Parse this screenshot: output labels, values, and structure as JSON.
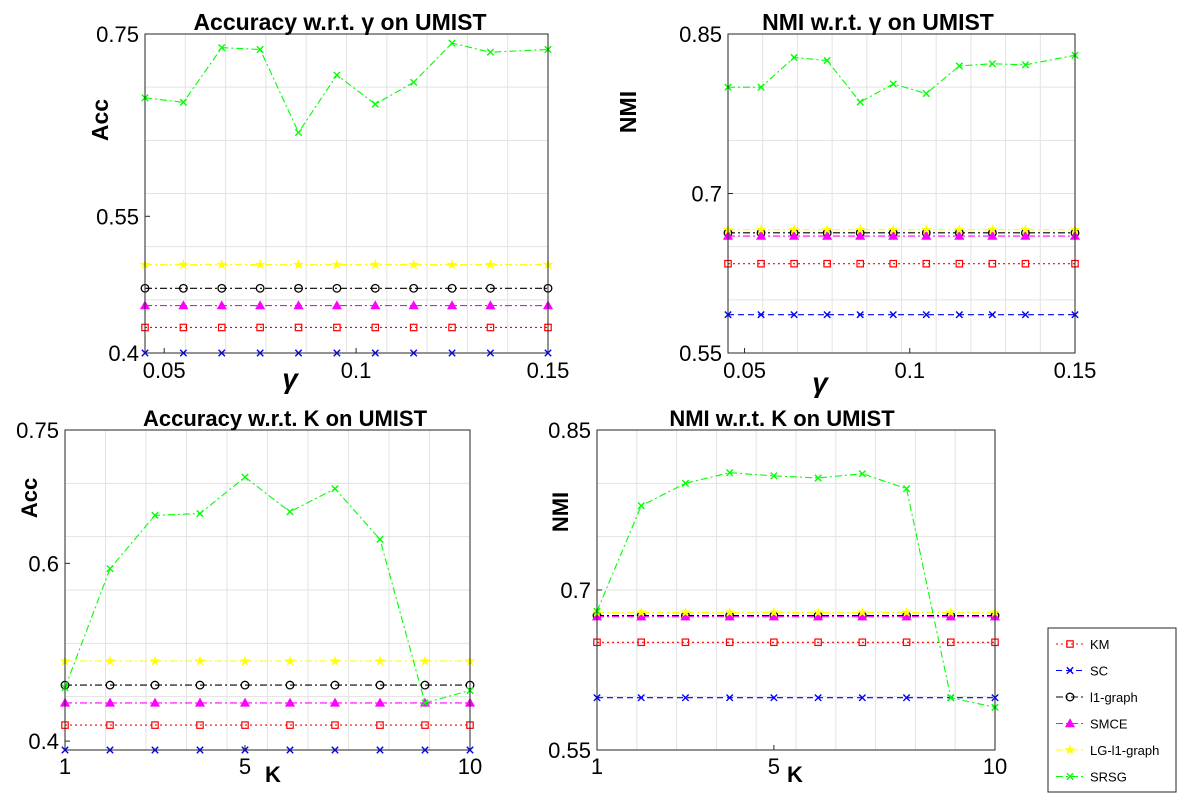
{
  "chart_data": [
    {
      "type": "line",
      "title": "Accuracy w.r.t. γ on UMIST",
      "xlabel": "γ",
      "ylabel": "Acc",
      "xlim": [
        0.045,
        0.15
      ],
      "ylim": [
        0.4,
        0.75
      ],
      "xticks": [
        0.05,
        0.1,
        0.15
      ],
      "xtick_labels": [
        "0.05",
        "0.1",
        "0.15"
      ],
      "yticks": [
        0.4,
        0.55,
        0.75
      ],
      "ytick_labels": [
        "0.4",
        "0.55",
        "0.75"
      ],
      "grid": true,
      "x": [
        0.045,
        0.055,
        0.065,
        0.075,
        0.085,
        0.095,
        0.105,
        0.115,
        0.125,
        0.135,
        0.15
      ],
      "series": [
        {
          "name": "KM",
          "values": [
            0.428,
            0.428,
            0.428,
            0.428,
            0.428,
            0.428,
            0.428,
            0.428,
            0.428,
            0.428,
            0.428
          ]
        },
        {
          "name": "SC",
          "values": [
            0.4,
            0.4,
            0.4,
            0.4,
            0.4,
            0.4,
            0.4,
            0.4,
            0.4,
            0.4,
            0.4
          ]
        },
        {
          "name": "l1-graph",
          "values": [
            0.471,
            0.471,
            0.471,
            0.471,
            0.471,
            0.471,
            0.471,
            0.471,
            0.471,
            0.471,
            0.471
          ]
        },
        {
          "name": "SMCE",
          "values": [
            0.452,
            0.452,
            0.452,
            0.452,
            0.452,
            0.452,
            0.452,
            0.452,
            0.452,
            0.452,
            0.452
          ]
        },
        {
          "name": "LG-l1-graph",
          "values": [
            0.497,
            0.497,
            0.497,
            0.497,
            0.497,
            0.497,
            0.497,
            0.497,
            0.497,
            0.497,
            0.497
          ]
        },
        {
          "name": "SRSG",
          "values": [
            0.68,
            0.675,
            0.735,
            0.733,
            0.642,
            0.705,
            0.673,
            0.697,
            0.74,
            0.73,
            0.733
          ]
        }
      ]
    },
    {
      "type": "line",
      "title": "NMI w.r.t. γ on UMIST",
      "xlabel": "γ",
      "ylabel": "NMI",
      "xlim": [
        0.045,
        0.15
      ],
      "ylim": [
        0.55,
        0.85
      ],
      "xticks": [
        0.05,
        0.1,
        0.15
      ],
      "xtick_labels": [
        "0.05",
        "0.1",
        "0.15"
      ],
      "yticks": [
        0.55,
        0.7,
        0.85
      ],
      "ytick_labels": [
        "0.55",
        "0.7",
        "0.85"
      ],
      "grid": true,
      "x": [
        0.045,
        0.055,
        0.065,
        0.075,
        0.085,
        0.095,
        0.105,
        0.115,
        0.125,
        0.135,
        0.15
      ],
      "series": [
        {
          "name": "KM",
          "values": [
            0.634,
            0.634,
            0.634,
            0.634,
            0.634,
            0.634,
            0.634,
            0.634,
            0.634,
            0.634,
            0.634
          ]
        },
        {
          "name": "SC",
          "values": [
            0.586,
            0.586,
            0.586,
            0.586,
            0.586,
            0.586,
            0.586,
            0.586,
            0.586,
            0.586,
            0.586
          ]
        },
        {
          "name": "l1-graph",
          "values": [
            0.663,
            0.663,
            0.663,
            0.663,
            0.663,
            0.663,
            0.663,
            0.663,
            0.663,
            0.663,
            0.663
          ]
        },
        {
          "name": "SMCE",
          "values": [
            0.66,
            0.66,
            0.66,
            0.66,
            0.66,
            0.66,
            0.66,
            0.66,
            0.66,
            0.66,
            0.66
          ]
        },
        {
          "name": "LG-l1-graph",
          "values": [
            0.666,
            0.666,
            0.666,
            0.666,
            0.666,
            0.666,
            0.666,
            0.666,
            0.666,
            0.666,
            0.666
          ]
        },
        {
          "name": "SRSG",
          "values": [
            0.8,
            0.8,
            0.828,
            0.825,
            0.786,
            0.803,
            0.794,
            0.82,
            0.822,
            0.821,
            0.83
          ]
        }
      ]
    },
    {
      "type": "line",
      "title": "Accuracy w.r.t. K on UMIST",
      "xlabel": "K",
      "ylabel": "Acc",
      "xlim": [
        1,
        10
      ],
      "ylim": [
        0.39,
        0.75
      ],
      "xticks": [
        1,
        5,
        10
      ],
      "xtick_labels": [
        "1",
        "5",
        "10"
      ],
      "yticks": [
        0.4,
        0.6,
        0.75
      ],
      "ytick_labels": [
        "0.4",
        "0.6",
        "0.75"
      ],
      "grid": true,
      "x": [
        1,
        2,
        3,
        4,
        5,
        6,
        7,
        8,
        9,
        10
      ],
      "series": [
        {
          "name": "KM",
          "values": [
            0.418,
            0.418,
            0.418,
            0.418,
            0.418,
            0.418,
            0.418,
            0.418,
            0.418,
            0.418
          ]
        },
        {
          "name": "SC",
          "values": [
            0.39,
            0.39,
            0.39,
            0.39,
            0.39,
            0.39,
            0.39,
            0.39,
            0.39,
            0.39
          ]
        },
        {
          "name": "l1-graph",
          "values": [
            0.463,
            0.463,
            0.463,
            0.463,
            0.463,
            0.463,
            0.463,
            0.463,
            0.463,
            0.463
          ]
        },
        {
          "name": "SMCE",
          "values": [
            0.443,
            0.443,
            0.443,
            0.443,
            0.443,
            0.443,
            0.443,
            0.443,
            0.443,
            0.443
          ]
        },
        {
          "name": "LG-l1-graph",
          "values": [
            0.49,
            0.49,
            0.49,
            0.49,
            0.49,
            0.49,
            0.49,
            0.49,
            0.49,
            0.49
          ]
        },
        {
          "name": "SRSG",
          "values": [
            0.46,
            0.594,
            0.654,
            0.656,
            0.697,
            0.658,
            0.684,
            0.627,
            0.443,
            0.457
          ]
        }
      ]
    },
    {
      "type": "line",
      "title": "NMI w.r.t. K on UMIST",
      "xlabel": "K",
      "ylabel": "NMI",
      "xlim": [
        1,
        10
      ],
      "ylim": [
        0.55,
        0.85
      ],
      "xticks": [
        1,
        5,
        10
      ],
      "xtick_labels": [
        "1",
        "5",
        "10"
      ],
      "yticks": [
        0.55,
        0.7,
        0.85
      ],
      "ytick_labels": [
        "0.55",
        "0.7",
        "0.85"
      ],
      "grid": true,
      "x": [
        1,
        2,
        3,
        4,
        5,
        6,
        7,
        8,
        9,
        10
      ],
      "series": [
        {
          "name": "KM",
          "values": [
            0.651,
            0.651,
            0.651,
            0.651,
            0.651,
            0.651,
            0.651,
            0.651,
            0.651,
            0.651
          ]
        },
        {
          "name": "SC",
          "values": [
            0.599,
            0.599,
            0.599,
            0.599,
            0.599,
            0.599,
            0.599,
            0.599,
            0.599,
            0.599
          ]
        },
        {
          "name": "l1-graph",
          "values": [
            0.676,
            0.676,
            0.676,
            0.676,
            0.676,
            0.676,
            0.676,
            0.676,
            0.676,
            0.676
          ]
        },
        {
          "name": "SMCE",
          "values": [
            0.675,
            0.675,
            0.675,
            0.675,
            0.675,
            0.675,
            0.675,
            0.675,
            0.675,
            0.675
          ]
        },
        {
          "name": "LG-l1-graph",
          "values": [
            0.679,
            0.679,
            0.679,
            0.679,
            0.679,
            0.679,
            0.679,
            0.679,
            0.679,
            0.679
          ]
        },
        {
          "name": "SRSG",
          "values": [
            0.68,
            0.779,
            0.8,
            0.81,
            0.807,
            0.805,
            0.809,
            0.795,
            0.599,
            0.59
          ]
        }
      ]
    }
  ],
  "legend": {
    "placement": "bottom-right",
    "entries": [
      {
        "label": "KM",
        "color": "#ff0000",
        "marker": "square",
        "dash": "dotted"
      },
      {
        "label": "SC",
        "color": "#0000ff",
        "marker": "x",
        "dash": "dashed"
      },
      {
        "label": "l1-graph",
        "color": "#000000",
        "marker": "circle",
        "dash": "dashdot"
      },
      {
        "label": "SMCE",
        "color": "#ff00ff",
        "marker": "triangle",
        "dash": "dashdot"
      },
      {
        "label": "LG-l1-graph",
        "color": "#ffff00",
        "marker": "star",
        "dash": "dashdot"
      },
      {
        "label": "SRSG",
        "color": "#00ff00",
        "marker": "x",
        "dash": "dashdot"
      }
    ]
  }
}
